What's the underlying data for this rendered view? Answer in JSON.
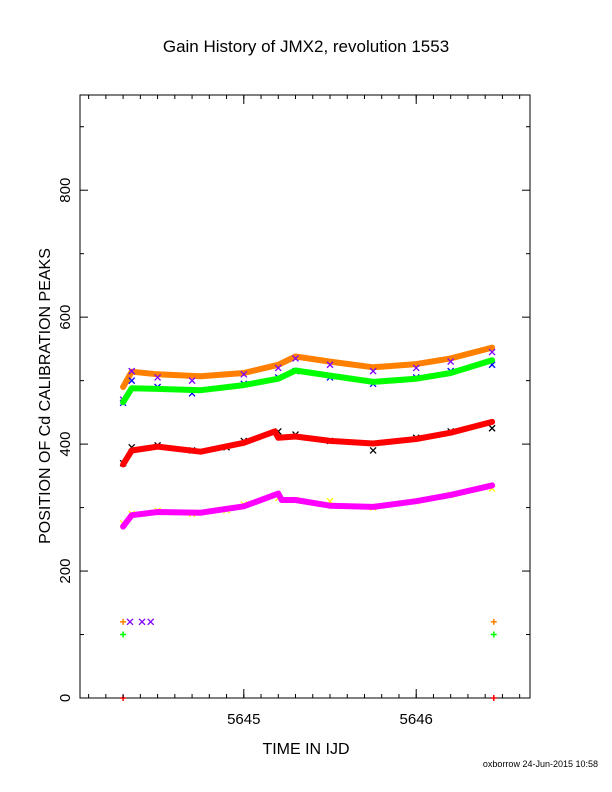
{
  "chart_data": {
    "type": "scatter",
    "title": "Gain History of JMX2, revolution 1553",
    "xlabel": "TIME IN IJD",
    "ylabel": "POSITION OF Cd CALIBRATION PEAKS",
    "xlim": [
      5644.05,
      5646.66
    ],
    "ylim": [
      0,
      950
    ],
    "xticks": [
      5645,
      5646
    ],
    "xtick_labels": [
      "5645",
      "5646"
    ],
    "yticks": [
      0,
      200,
      400,
      600,
      800
    ],
    "ytick_labels": [
      "0",
      "200",
      "400",
      "600",
      "800"
    ],
    "grid": false,
    "series": [
      {
        "color": "#ff8000",
        "marker": "line",
        "values": [
          [
            5644.3,
            490
          ],
          [
            5644.35,
            514
          ],
          [
            5644.5,
            510
          ],
          [
            5644.75,
            507
          ],
          [
            5645.0,
            512
          ],
          [
            5645.2,
            525
          ],
          [
            5645.3,
            538
          ],
          [
            5645.5,
            530
          ],
          [
            5645.75,
            521
          ],
          [
            5646.0,
            526
          ],
          [
            5646.2,
            535
          ],
          [
            5646.44,
            552
          ]
        ]
      },
      {
        "color": "#8000ff",
        "marker": "x",
        "values": [
          [
            5644.3,
            470
          ],
          [
            5644.35,
            515
          ],
          [
            5644.5,
            505
          ],
          [
            5644.7,
            500
          ],
          [
            5645.0,
            510
          ],
          [
            5645.2,
            520
          ],
          [
            5645.3,
            535
          ],
          [
            5645.5,
            525
          ],
          [
            5645.75,
            515
          ],
          [
            5646.0,
            520
          ],
          [
            5646.2,
            530
          ],
          [
            5646.44,
            545
          ]
        ]
      },
      {
        "color": "#0000ff",
        "marker": "x",
        "values": [
          [
            5644.3,
            465
          ],
          [
            5644.35,
            500
          ],
          [
            5644.5,
            490
          ],
          [
            5644.7,
            480
          ],
          [
            5645.0,
            495
          ],
          [
            5645.2,
            505
          ],
          [
            5645.3,
            515
          ],
          [
            5645.5,
            505
          ],
          [
            5645.75,
            495
          ],
          [
            5646.0,
            505
          ],
          [
            5646.2,
            515
          ],
          [
            5646.44,
            525
          ]
        ]
      },
      {
        "color": "#00ff00",
        "marker": "line",
        "values": [
          [
            5644.3,
            466
          ],
          [
            5644.35,
            488
          ],
          [
            5644.5,
            487
          ],
          [
            5644.75,
            485
          ],
          [
            5645.0,
            493
          ],
          [
            5645.2,
            503
          ],
          [
            5645.3,
            516
          ],
          [
            5645.5,
            508
          ],
          [
            5645.75,
            498
          ],
          [
            5646.0,
            503
          ],
          [
            5646.2,
            512
          ],
          [
            5646.44,
            532
          ]
        ]
      },
      {
        "color": "#000000",
        "marker": "x",
        "values": [
          [
            5644.3,
            370
          ],
          [
            5644.35,
            395
          ],
          [
            5644.5,
            398
          ],
          [
            5644.7,
            390
          ],
          [
            5644.9,
            395
          ],
          [
            5645.0,
            405
          ],
          [
            5645.2,
            420
          ],
          [
            5645.3,
            415
          ],
          [
            5645.5,
            405
          ],
          [
            5645.75,
            390
          ],
          [
            5646.0,
            410
          ],
          [
            5646.2,
            420
          ],
          [
            5646.44,
            425
          ]
        ]
      },
      {
        "color": "#ff0000",
        "marker": "line",
        "values": [
          [
            5644.3,
            368
          ],
          [
            5644.35,
            390
          ],
          [
            5644.5,
            396
          ],
          [
            5644.75,
            388
          ],
          [
            5645.0,
            402
          ],
          [
            5645.18,
            420
          ],
          [
            5645.2,
            410
          ],
          [
            5645.3,
            412
          ],
          [
            5645.5,
            405
          ],
          [
            5645.75,
            401
          ],
          [
            5646.0,
            408
          ],
          [
            5646.2,
            418
          ],
          [
            5646.44,
            435
          ]
        ]
      },
      {
        "color": "#ffff00",
        "marker": "x",
        "values": [
          [
            5644.3,
            275
          ],
          [
            5644.35,
            290
          ],
          [
            5644.5,
            295
          ],
          [
            5644.7,
            290
          ],
          [
            5644.9,
            296
          ],
          [
            5645.0,
            305
          ],
          [
            5645.2,
            315
          ],
          [
            5645.3,
            312
          ],
          [
            5645.5,
            310
          ],
          [
            5645.75,
            300
          ],
          [
            5646.0,
            310
          ],
          [
            5646.2,
            320
          ],
          [
            5646.44,
            330
          ]
        ]
      },
      {
        "color": "#ff00ff",
        "marker": "line",
        "values": [
          [
            5644.3,
            270
          ],
          [
            5644.35,
            288
          ],
          [
            5644.5,
            293
          ],
          [
            5644.75,
            292
          ],
          [
            5645.0,
            302
          ],
          [
            5645.2,
            322
          ],
          [
            5645.22,
            312
          ],
          [
            5645.3,
            312
          ],
          [
            5645.5,
            303
          ],
          [
            5645.75,
            301
          ],
          [
            5646.0,
            310
          ],
          [
            5646.2,
            320
          ],
          [
            5646.44,
            335
          ]
        ]
      },
      {
        "color": "#ff8000",
        "marker": "plus",
        "values": [
          [
            5644.3,
            120
          ],
          [
            5646.45,
            120
          ]
        ]
      },
      {
        "color": "#8000ff",
        "marker": "x",
        "values": [
          [
            5644.34,
            120
          ],
          [
            5644.41,
            120
          ],
          [
            5644.46,
            120
          ]
        ]
      },
      {
        "color": "#00ff00",
        "marker": "plus",
        "values": [
          [
            5644.3,
            100
          ],
          [
            5646.45,
            100
          ]
        ]
      },
      {
        "color": "#ff0000",
        "marker": "plus",
        "values": [
          [
            5644.3,
            0
          ],
          [
            5646.45,
            0
          ]
        ]
      }
    ]
  },
  "footer": "oxborrow 24-Jun-2015 10:58"
}
